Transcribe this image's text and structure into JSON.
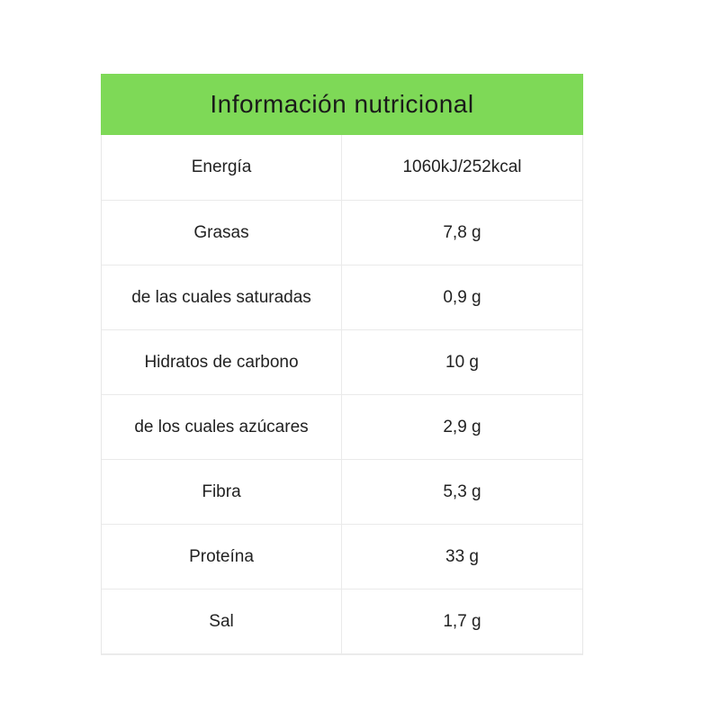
{
  "title": "Información nutricional",
  "rows": [
    {
      "label": "Energía",
      "value": "1060kJ/252kcal"
    },
    {
      "label": "Grasas",
      "value": "7,8 g"
    },
    {
      "label": "de las cuales saturadas",
      "value": "0,9 g"
    },
    {
      "label": "Hidratos de carbono",
      "value": "10 g"
    },
    {
      "label": "de los cuales azúcares",
      "value": "2,9 g"
    },
    {
      "label": "Fibra",
      "value": "5,3 g"
    },
    {
      "label": "Proteína",
      "value": "33 g"
    },
    {
      "label": "Sal",
      "value": "1,7 g"
    }
  ],
  "colors": {
    "header_bg": "#7ed957",
    "border": "#eaeaea",
    "text": "#222222"
  }
}
